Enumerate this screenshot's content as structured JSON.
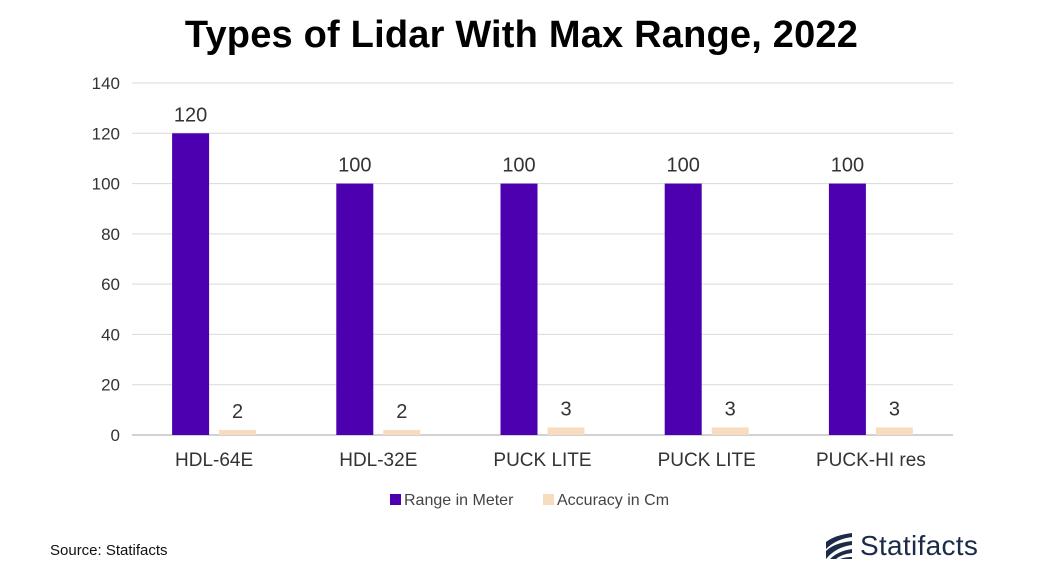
{
  "title": "Types of Lidar With Max Range, 2022",
  "source": "Source: Statifacts",
  "brand": {
    "name": "Statifacts",
    "logo_icon": "statifacts-logo-icon"
  },
  "colors": {
    "range": "#4c00b0",
    "accuracy": "#f8dcc0",
    "grid": "#d9d9d9",
    "axis": "#a6a6a6",
    "brand": "#1c2b48"
  },
  "chart_data": {
    "type": "bar",
    "title": "Types of Lidar With Max Range, 2022",
    "categories": [
      "HDL-64E",
      "HDL-32E",
      "PUCK LITE",
      "PUCK LITE",
      "PUCK-HI res"
    ],
    "series": [
      {
        "name": "Range in Meter",
        "values": [
          120,
          100,
          100,
          100,
          100
        ]
      },
      {
        "name": "Accuracy in Cm",
        "values": [
          2,
          2,
          3,
          3,
          3
        ]
      }
    ],
    "yticks": [
      "0",
      "20",
      "40",
      "60",
      "80",
      "100",
      "120",
      "140"
    ],
    "ylim": [
      0,
      140
    ],
    "grid": true,
    "legend": "bottom",
    "xlabel": "",
    "ylabel": ""
  }
}
